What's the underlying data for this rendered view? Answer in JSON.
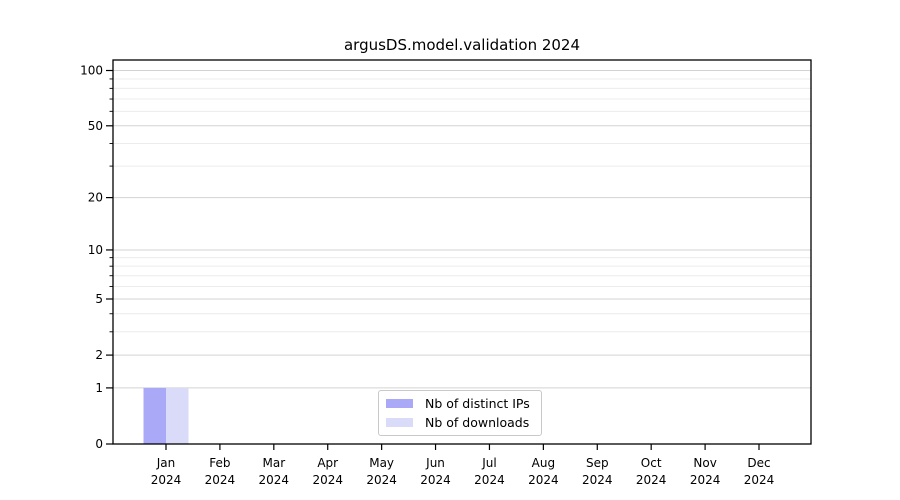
{
  "title": "argusDS.model.validation 2024",
  "chart_data": {
    "type": "bar",
    "title": "argusDS.model.validation 2024",
    "categories": [
      "Jan",
      "Feb",
      "Mar",
      "Apr",
      "May",
      "Jun",
      "Jul",
      "Aug",
      "Sep",
      "Oct",
      "Nov",
      "Dec"
    ],
    "x_year": "2024",
    "series": [
      {
        "name": "Nb of distinct IPs",
        "color": "#a9a9f8",
        "values": [
          1,
          0,
          0,
          0,
          0,
          0,
          0,
          0,
          0,
          0,
          0,
          0
        ]
      },
      {
        "name": "Nb of downloads",
        "color": "#dadaf9",
        "values": [
          1,
          0,
          0,
          0,
          0,
          0,
          0,
          0,
          0,
          0,
          0,
          0
        ]
      }
    ],
    "xlabel": "",
    "ylabel": "",
    "y_scale": "log1p",
    "ylim": [
      0,
      114
    ],
    "y_ticks": [
      0,
      1,
      2,
      5,
      10,
      20,
      50,
      100
    ],
    "y_minor_ticks": [
      3,
      4,
      6,
      7,
      8,
      9,
      30,
      40,
      60,
      70,
      80,
      90
    ],
    "grid": true,
    "legend_position": "lower center",
    "colors": {
      "grid_major": "#d3d3d3",
      "grid_minor": "#ececec",
      "axis": "#000000",
      "tick_label": "#000000",
      "background": "#ffffff"
    }
  }
}
